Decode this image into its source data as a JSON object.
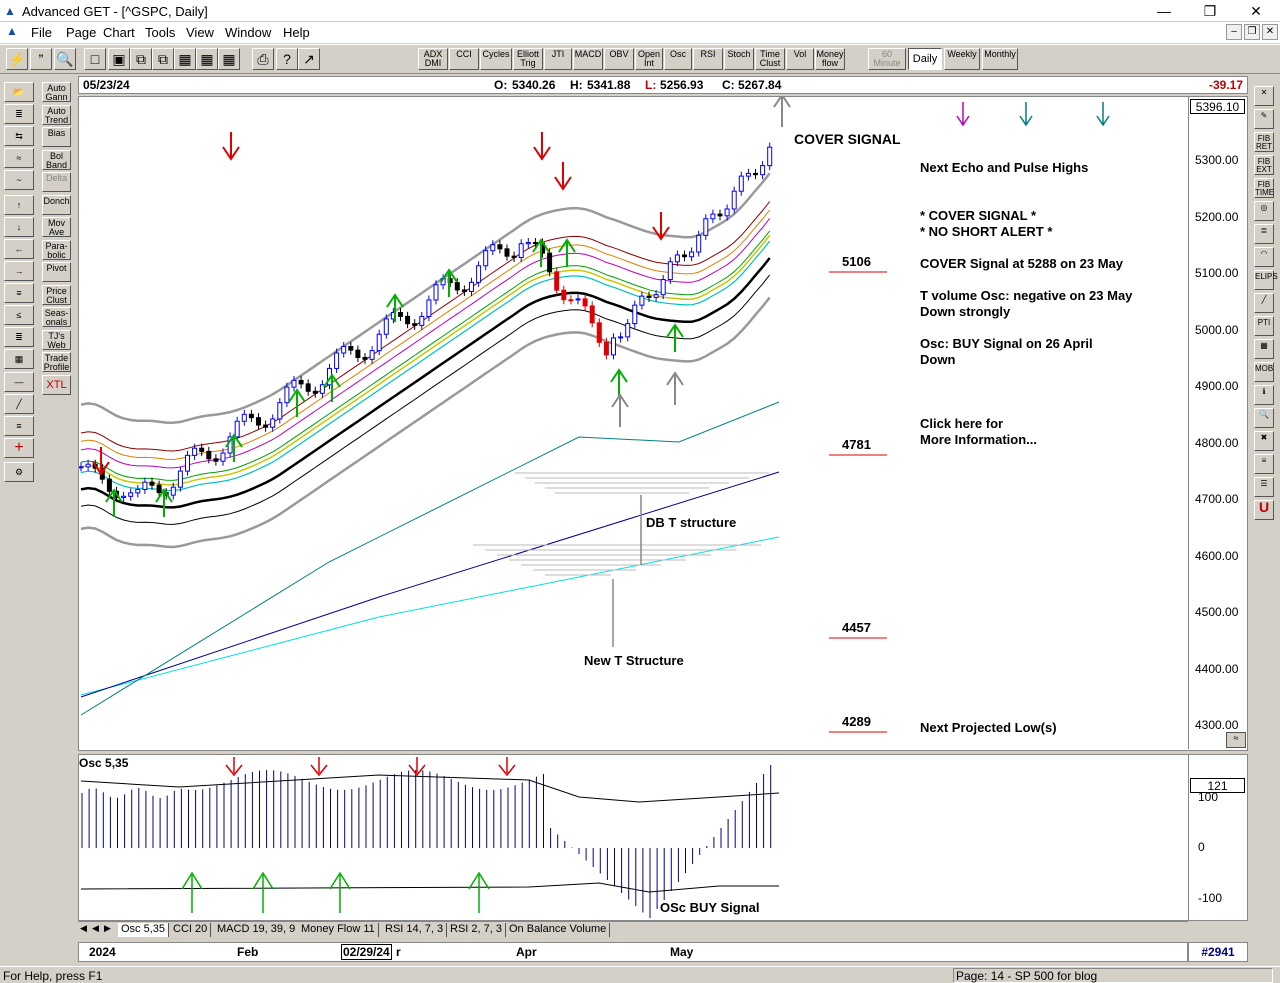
{
  "window": {
    "title": "Advanced GET - [^GSPC, Daily]",
    "minimize": "—",
    "restore": "❐",
    "close": "✕"
  },
  "menu": [
    "File",
    "Page",
    "Chart",
    "Tools",
    "View",
    "Window",
    "Help"
  ],
  "toolbar": {
    "indicators": [
      "ADX DMI",
      "CCI",
      "Cycles",
      "Elliott Trig",
      "JTI",
      "MACD",
      "OBV",
      "Open Int",
      "Osc",
      "RSI",
      "Stoch",
      "Time Clust",
      "Vol",
      "Money flow"
    ],
    "timeframes": [
      "60 Minute",
      "Daily",
      "Weekly",
      "Monthly"
    ],
    "active_timeframe": "Daily"
  },
  "left_tools": [
    "Auto Gann",
    "Auto Trend",
    "Bias",
    "Bol Band",
    "Delta",
    "Donch",
    "Mov Ave",
    "Para-bolic",
    "Pivot",
    "Price Clust",
    "Seas-onals",
    "TJ's Web",
    "Trade Profile",
    "XTL"
  ],
  "left_icons": [
    "RESET",
    "STUDY",
    "Elliott",
    "LINES",
    "GANN",
    "FIB"
  ],
  "right_tools": [
    "FIB RET",
    "FIB EXT",
    "FIB TIME",
    "ELIPS",
    "PTI",
    "MOB"
  ],
  "infobar": {
    "date": "05/23/24",
    "open_label": "O:",
    "open": "5340.26",
    "high_label": "H:",
    "high": "5341.88",
    "low_label": "L:",
    "low": "5256.93",
    "close_label": "C:",
    "close": "5267.84",
    "change": "-39.17"
  },
  "chart": {
    "last_price": "5396.10",
    "price_axis": [
      "5300.00",
      "5200.00",
      "5100.00",
      "5000.00",
      "4900.00",
      "4800.00",
      "4700.00",
      "4600.00",
      "4500.00",
      "4400.00",
      "4300.00"
    ],
    "annotations": {
      "cover_signal": "COVER SIGNAL",
      "db_t": "DB T structure",
      "new_t": "New T Structure"
    },
    "projections": [
      "5106",
      "4781",
      "4457",
      "4289"
    ],
    "notes": {
      "echo": "Next Echo and Pulse Highs",
      "cover1": "* COVER SIGNAL *",
      "cover2": "* NO SHORT ALERT *",
      "cover3": "COVER Signal at 5288 on 23 May",
      "tvol1": "T volume Osc: negative on 23 May",
      "tvol2": "Down strongly",
      "osc1": "Osc: BUY Signal on 26 April",
      "osc2": "Down",
      "click1": "Click here for",
      "click2": "More Information...",
      "proj": "Next Projected Low(s)"
    }
  },
  "oscillator": {
    "label": "Osc 5,35",
    "value": "121",
    "axis": [
      "100",
      "0",
      "-100"
    ],
    "buy_signal": "OSc BUY Signal"
  },
  "tabs": [
    "Osc 5,35",
    "CCI 20",
    "MACD 19, 39, 9",
    "Money Flow 11",
    "RSI 14, 7, 3",
    "RSI 2, 7, 3",
    "On Balance Volume"
  ],
  "date_axis": {
    "labels": [
      "2024",
      "Feb",
      "Apr",
      "May"
    ],
    "cursor_date": "02/29/24",
    "cursor_suffix": "r",
    "bar_count": "#2941"
  },
  "status": {
    "help": "For Help, press F1",
    "page": "Page: 14 - SP 500 for blog"
  },
  "colors": {
    "up": "#0000ff",
    "down": "#000000",
    "red": "#e00000",
    "green": "#00b000",
    "teal": "#008080"
  }
}
